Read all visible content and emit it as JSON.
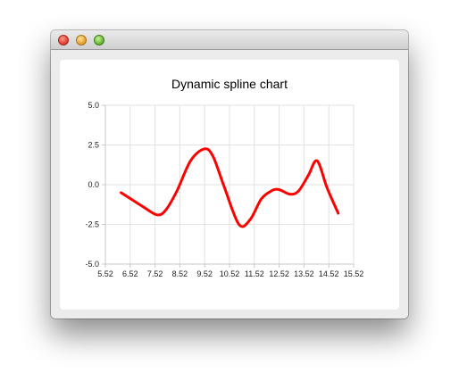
{
  "window": {
    "controls": [
      {
        "name": "close-button"
      },
      {
        "name": "minimize-button"
      },
      {
        "name": "zoom-button"
      }
    ]
  },
  "chart_data": {
    "type": "line",
    "title": "Dynamic spline chart",
    "xlabel": "",
    "ylabel": "",
    "xlim": [
      5.52,
      15.52
    ],
    "ylim": [
      -5.0,
      5.0
    ],
    "x_ticks": [
      5.52,
      6.52,
      7.52,
      8.52,
      9.52,
      10.52,
      11.52,
      12.52,
      13.52,
      14.52,
      15.52
    ],
    "x_tick_labels": [
      "5.52",
      "6.52",
      "7.52",
      "8.52",
      "9.52",
      "10.52",
      "11.52",
      "12.52",
      "13.52",
      "14.52",
      "15.52"
    ],
    "y_ticks": [
      -5.0,
      -2.5,
      0.0,
      2.5,
      5.0
    ],
    "y_tick_labels": [
      "-5.0",
      "-2.5",
      "0.0",
      "2.5",
      "5.0"
    ],
    "grid": true,
    "legend": "none",
    "series": [
      {
        "color": "#ff0000",
        "x": [
          6.15,
          6.55,
          7.05,
          7.6,
          7.95,
          8.4,
          8.95,
          9.5,
          9.85,
          10.3,
          10.9,
          11.35,
          11.8,
          12.2,
          12.5,
          12.95,
          13.3,
          13.7,
          14.05,
          14.45,
          14.9
        ],
        "y": [
          -0.5,
          -0.9,
          -1.4,
          -1.9,
          -1.6,
          -0.4,
          1.5,
          2.25,
          1.8,
          -0.1,
          -2.5,
          -2.2,
          -0.9,
          -0.4,
          -0.3,
          -0.6,
          -0.4,
          0.6,
          1.5,
          -0.2,
          -1.8
        ]
      }
    ]
  }
}
